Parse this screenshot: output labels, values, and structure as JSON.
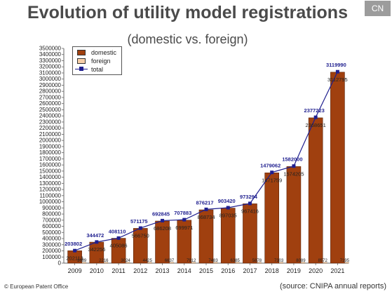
{
  "title": "Evolution of utility model registrations",
  "subtitle": "(domestic vs. foreign)",
  "badge": "CN",
  "footer_left": "© European Patent Office",
  "footer_right": "(source: CNIPA annual reports)",
  "colors": {
    "domestic": "#a0400f",
    "foreign": "#f7cfa8",
    "total": "#1f1f8f",
    "title": "#4a4a4a"
  },
  "chart_data": {
    "type": "bar",
    "categories": [
      "2009",
      "2010",
      "2011",
      "2012",
      "2013",
      "2014",
      "2015",
      "2016",
      "2017",
      "2018",
      "2019",
      "2020",
      "2021"
    ],
    "series": [
      {
        "name": "domestic",
        "kind": "bar",
        "values": [
          202113,
          342256,
          405086,
          566750,
          686208,
          699971,
          868734,
          897035,
          967416,
          1471759,
          1574205,
          2368651,
          3112795
        ]
      },
      {
        "name": "foreign",
        "kind": "bar",
        "values": [
          1689,
          2216,
          3024,
          4425,
          6637,
          7912,
          7483,
          6385,
          5878,
          7303,
          8089,
          8572,
          7195
        ]
      },
      {
        "name": "total",
        "kind": "line",
        "values": [
          203802,
          344472,
          408110,
          571175,
          692845,
          707883,
          876217,
          903420,
          973294,
          1479062,
          1582000,
          2377223,
          3119990
        ]
      }
    ],
    "ylim": [
      0,
      3500000
    ],
    "ytick_step": 100000,
    "yticks": [
      "0",
      "100000",
      "200000",
      "300000",
      "400000",
      "500000",
      "600000",
      "700000",
      "800000",
      "900000",
      "1000000",
      "1100000",
      "1200000",
      "1300000",
      "1400000",
      "1500000",
      "1600000",
      "1700000",
      "1800000",
      "1900000",
      "2000000",
      "2100000",
      "2200000",
      "2300000",
      "2400000",
      "2500000",
      "2600000",
      "2700000",
      "2800000",
      "2900000",
      "3000000",
      "3100000",
      "3200000",
      "3300000",
      "3400000",
      "3500000"
    ],
    "legend": [
      "domestic",
      "foreign",
      "total"
    ],
    "legend_position": "top-left",
    "grid": false
  }
}
